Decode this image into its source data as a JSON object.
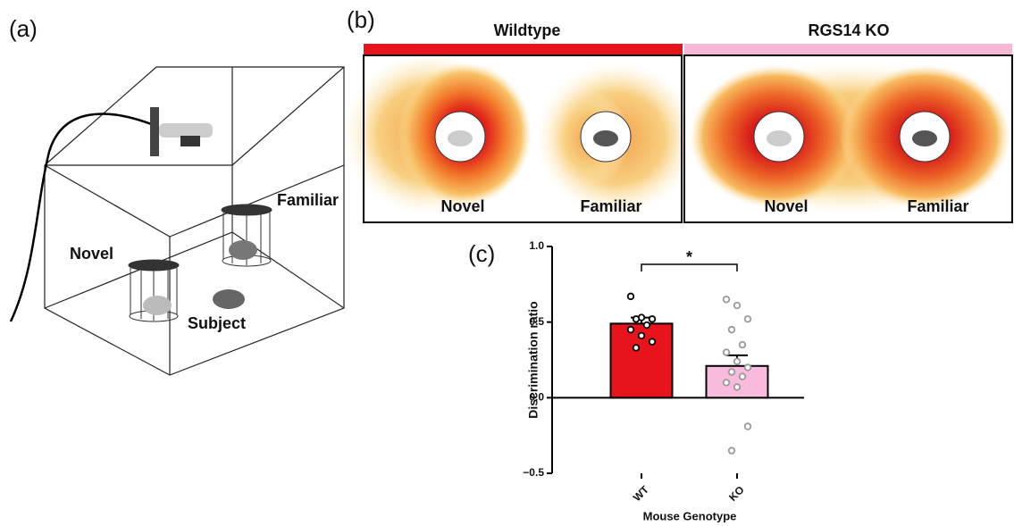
{
  "panel_a": {
    "label": "(a)",
    "novel": "Novel",
    "familiar": "Familiar",
    "subject": "Subject"
  },
  "panel_b": {
    "label": "(b)",
    "groups": [
      {
        "title": "Wildtype",
        "color": "#e8141b",
        "novel": "Novel",
        "familiar": "Familiar"
      },
      {
        "title": "RGS14 KO",
        "color": "#f7b8d6",
        "novel": "Novel",
        "familiar": "Familiar"
      }
    ]
  },
  "chart_data": {
    "type": "bar",
    "panel_label": "(c)",
    "categories": [
      "WT",
      "KO"
    ],
    "values": [
      0.49,
      0.21
    ],
    "errors": [
      0.04,
      0.07
    ],
    "colors": [
      "#e8141b",
      "#f9bbdc"
    ],
    "point_colors": [
      "#000000",
      "#999999"
    ],
    "points": [
      [
        0.67,
        0.53,
        0.52,
        0.52,
        0.48,
        0.45,
        0.41,
        0.37,
        0.33
      ],
      [
        0.65,
        0.61,
        0.52,
        0.45,
        0.35,
        0.3,
        0.24,
        0.2,
        0.17,
        0.14,
        0.1,
        0.07,
        -0.19,
        -0.35
      ]
    ],
    "ylim": [
      -0.5,
      1.0
    ],
    "yticks": [
      {
        "value": -0.5,
        "label": "−0.5"
      },
      {
        "value": 0,
        "label": "0.0"
      },
      {
        "value": 0.5,
        "label": "0.5"
      },
      {
        "value": 1.0,
        "label": "1.0"
      }
    ],
    "ylabel": "Discrimination ratio",
    "xlabel": "Mouse Genotype",
    "annotation": "*"
  }
}
